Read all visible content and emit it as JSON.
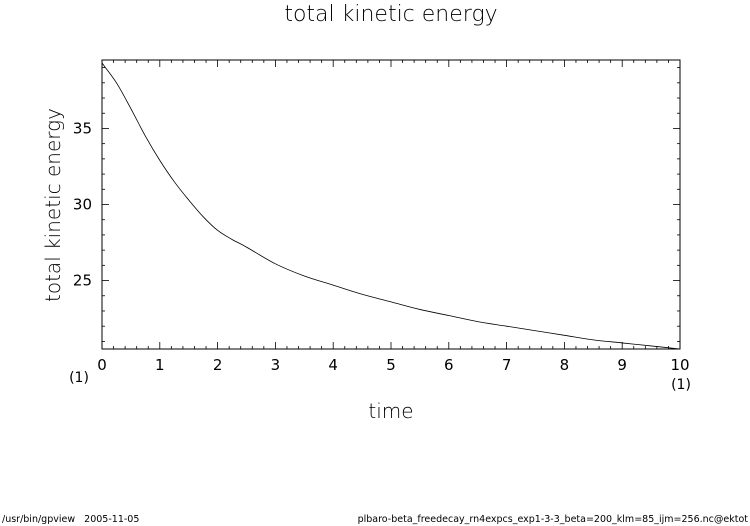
{
  "footer": {
    "program": "/usr/bin/gpview",
    "date": "2005-11-05",
    "file": "plbaro-beta_freedecay_rn4expcs_exp1-3-3_beta=200_klm=85_ijm=256.nc@ektot"
  },
  "chart_data": {
    "type": "line",
    "title": "total kinetic energy",
    "xlabel": "time",
    "ylabel": "total kinetic energy",
    "x_unit_label": "(1)",
    "xlim": [
      0,
      10
    ],
    "ylim": [
      20.5,
      39.5
    ],
    "x_ticks": [
      "0",
      "1",
      "2",
      "3",
      "4",
      "5",
      "6",
      "7",
      "8",
      "9",
      "10"
    ],
    "y_ticks": [
      "25",
      "30",
      "35"
    ],
    "grid": false,
    "series": [
      {
        "x": [
          0,
          0.25,
          0.5,
          0.75,
          1.0,
          1.25,
          1.5,
          1.75,
          2.0,
          2.25,
          2.5,
          3.0,
          3.5,
          4.0,
          4.5,
          5.0,
          5.5,
          6.0,
          6.5,
          7.0,
          7.5,
          8.0,
          8.5,
          9.0,
          9.5,
          10.0
        ],
        "y": [
          39.3,
          38.0,
          36.3,
          34.5,
          32.9,
          31.5,
          30.3,
          29.2,
          28.3,
          27.7,
          27.2,
          26.1,
          25.3,
          24.7,
          24.1,
          23.6,
          23.1,
          22.7,
          22.3,
          22.0,
          21.7,
          21.4,
          21.1,
          20.9,
          20.7,
          20.5
        ]
      }
    ]
  }
}
